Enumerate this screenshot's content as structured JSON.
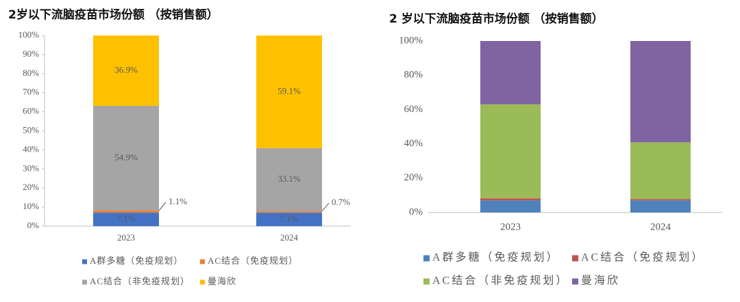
{
  "chart_data": [
    {
      "type": "bar",
      "stacked": true,
      "title": "2岁以下流脑疫苗市场份额 （按销售额）",
      "categories": [
        "2023",
        "2024"
      ],
      "series": [
        {
          "name": "A群多糖（免疫规划）",
          "color": "#4472c4",
          "values": [
            7.1,
            7.1
          ],
          "value_labels": [
            "7.1%",
            "7.1%"
          ]
        },
        {
          "name": "AC结合（免疫规划）",
          "color": "#ed7d31",
          "values": [
            1.1,
            0.7
          ],
          "value_labels": [
            "1.1%",
            "0.7%"
          ]
        },
        {
          "name": "AC结合（非免疫规划）",
          "color": "#a5a5a5",
          "values": [
            54.9,
            33.1
          ],
          "value_labels": [
            "54.9%",
            "33.1%"
          ]
        },
        {
          "name": "曼海欣",
          "color": "#ffc000",
          "values": [
            36.9,
            59.1
          ],
          "value_labels": [
            "36.9%",
            "59.1%"
          ]
        }
      ],
      "ylim": [
        0,
        100
      ],
      "yticks": [
        {
          "value": 0,
          "label": "0%"
        },
        {
          "value": 10,
          "label": "10%"
        },
        {
          "value": 20,
          "label": "20%"
        },
        {
          "value": 30,
          "label": "30%"
        },
        {
          "value": 40,
          "label": "40%"
        },
        {
          "value": 50,
          "label": "50%"
        },
        {
          "value": 60,
          "label": "60%"
        },
        {
          "value": 70,
          "label": "70%"
        },
        {
          "value": 80,
          "label": "80%"
        },
        {
          "value": 90,
          "label": "90%"
        },
        {
          "value": 100,
          "label": "100%"
        }
      ],
      "grid": false
    },
    {
      "type": "bar",
      "stacked": true,
      "title": "2 岁以下流脑疫苗市场份额 （按销售额）",
      "categories": [
        "2023",
        "2024"
      ],
      "series": [
        {
          "name": "A群多糖（免疫规划）",
          "color": "#4f81bd",
          "values": [
            7.1,
            7.1
          ]
        },
        {
          "name": "AC结合（免疫规划）",
          "color": "#c0504d",
          "values": [
            1.1,
            0.7
          ]
        },
        {
          "name": "AC结合（非免疫规划）",
          "color": "#9bbb59",
          "values": [
            54.9,
            33.1
          ]
        },
        {
          "name": "曼海欣",
          "color": "#8064a2",
          "values": [
            36.9,
            59.1
          ]
        }
      ],
      "ylim": [
        0,
        100
      ],
      "yticks": [
        {
          "value": 0,
          "label": "0%"
        },
        {
          "value": 20,
          "label": "20%"
        },
        {
          "value": 40,
          "label": "40%"
        },
        {
          "value": 60,
          "label": "60%"
        },
        {
          "value": 80,
          "label": "80%"
        },
        {
          "value": 100,
          "label": "100%"
        }
      ],
      "grid": false
    }
  ]
}
